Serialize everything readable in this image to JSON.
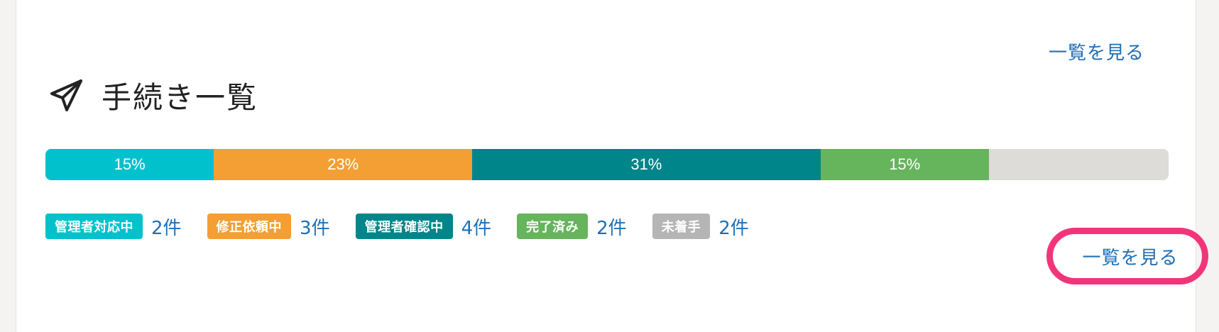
{
  "header": {
    "view_all_top": "一覧を見る",
    "title": "手続き一覧",
    "title_icon": "paper-plane-icon"
  },
  "progress": {
    "segments": [
      {
        "label": "15%",
        "percent": 15,
        "color": "#00c1cc"
      },
      {
        "label": "23%",
        "percent": 23,
        "color": "#f39f33"
      },
      {
        "label": "31%",
        "percent": 31,
        "color": "#00858a"
      },
      {
        "label": "15%",
        "percent": 15,
        "color": "#66b45c"
      },
      {
        "label": "",
        "percent": 16,
        "color": "#dddcd8"
      }
    ]
  },
  "legend": {
    "items": [
      {
        "badge": "管理者対応中",
        "count": "2件",
        "color": "#00c1cc"
      },
      {
        "badge": "修正依頼中",
        "count": "3件",
        "color": "#f39f33"
      },
      {
        "badge": "管理者確認中",
        "count": "4件",
        "color": "#00858a"
      },
      {
        "badge": "完了済み",
        "count": "2件",
        "color": "#66b45c"
      },
      {
        "badge": "未着手",
        "count": "2件",
        "color": "#b5b5b5"
      }
    ]
  },
  "footer": {
    "view_all_bottom": "一覧を見る",
    "highlight_color": "#f2357a"
  }
}
